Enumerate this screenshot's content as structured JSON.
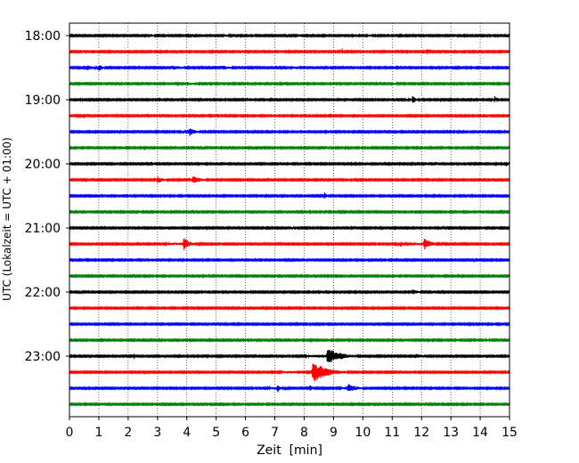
{
  "chart_data": {
    "type": "line",
    "xlabel": "Zeit  [min]",
    "ylabel": "UTC (Lokalzeit = UTC + 01:00)",
    "xlim": [
      0,
      15
    ],
    "xticks": [
      0,
      1,
      2,
      3,
      4,
      5,
      6,
      7,
      8,
      9,
      10,
      11,
      12,
      13,
      14,
      15
    ],
    "xtick_labels": [
      "0",
      "1",
      "2",
      "3",
      "4",
      "5",
      "6",
      "7",
      "8",
      "9",
      "10",
      "11",
      "12",
      "13",
      "14",
      "15"
    ],
    "x_grid": "dotted",
    "rows_start": "18:00",
    "row_interval_min": 15,
    "ytick_labels": [
      "18:00",
      "19:00",
      "20:00",
      "21:00",
      "22:00",
      "23:00"
    ],
    "colors": [
      "#000000",
      "#ff0000",
      "#0000ff",
      "#008000"
    ],
    "rows": [
      {
        "start": "18:00",
        "color": "#000000",
        "events": [
          {
            "x": 2.7,
            "amp": 0.25,
            "dur": 0.6
          },
          {
            "x": 5.3,
            "amp": 0.2,
            "dur": 0.5
          },
          {
            "x": 7.8,
            "amp": 0.2,
            "dur": 0.4
          },
          {
            "x": 10.2,
            "amp": 0.2,
            "dur": 0.5
          }
        ]
      },
      {
        "start": "18:15",
        "color": "#ff0000",
        "events": [
          {
            "x": 9.3,
            "amp": 0.45,
            "dur": 0.1
          },
          {
            "x": 12.2,
            "amp": 0.45,
            "dur": 0.1
          },
          {
            "x": 12.4,
            "amp": 0.3,
            "dur": 0.1
          }
        ]
      },
      {
        "start": "18:30",
        "color": "#0000ff",
        "events": [
          {
            "x": 0.6,
            "amp": 0.35,
            "dur": 0.6
          },
          {
            "x": 1.0,
            "amp": 0.45,
            "dur": 0.4
          },
          {
            "x": 3.5,
            "amp": 0.3,
            "dur": 1.0
          },
          {
            "x": 5.2,
            "amp": 0.3,
            "dur": 1.0
          },
          {
            "x": 7.5,
            "amp": 0.25,
            "dur": 1.0
          }
        ]
      },
      {
        "start": "18:45",
        "color": "#008000",
        "events": [
          {
            "x": 4.0,
            "amp": 0.25,
            "dur": 0.8
          },
          {
            "x": 11.0,
            "amp": 0.2,
            "dur": 0.6
          }
        ]
      },
      {
        "start": "19:00",
        "color": "#000000",
        "events": [
          {
            "x": 2.1,
            "amp": 0.3,
            "dur": 0.1
          },
          {
            "x": 11.7,
            "amp": 0.5,
            "dur": 0.3
          },
          {
            "x": 14.5,
            "amp": 0.45,
            "dur": 0.1
          }
        ]
      },
      {
        "start": "19:15",
        "color": "#ff0000",
        "events": [
          {
            "x": 0.5,
            "amp": 0.45,
            "dur": 0.15
          },
          {
            "x": 3.2,
            "amp": 0.3,
            "dur": 0.1
          }
        ]
      },
      {
        "start": "19:30",
        "color": "#0000ff",
        "events": [
          {
            "x": 2.3,
            "amp": 0.3,
            "dur": 0.2
          },
          {
            "x": 4.1,
            "amp": 0.55,
            "dur": 0.5
          },
          {
            "x": 7.8,
            "amp": 0.3,
            "dur": 0.1
          }
        ]
      },
      {
        "start": "19:45",
        "color": "#008000",
        "events": []
      },
      {
        "start": "20:00",
        "color": "#000000",
        "events": [
          {
            "x": 2.8,
            "amp": 0.3,
            "dur": 0.2
          },
          {
            "x": 12.5,
            "amp": 0.25,
            "dur": 0.3
          },
          {
            "x": 14.9,
            "amp": 0.4,
            "dur": 0.15
          }
        ]
      },
      {
        "start": "20:15",
        "color": "#ff0000",
        "events": [
          {
            "x": 3.0,
            "amp": 0.45,
            "dur": 0.6
          },
          {
            "x": 4.2,
            "amp": 0.5,
            "dur": 0.8
          },
          {
            "x": 9.5,
            "amp": 0.2,
            "dur": 0.4
          }
        ]
      },
      {
        "start": "20:30",
        "color": "#0000ff",
        "events": [
          {
            "x": 8.7,
            "amp": 0.5,
            "dur": 0.2
          }
        ]
      },
      {
        "start": "20:45",
        "color": "#008000",
        "events": []
      },
      {
        "start": "21:00",
        "color": "#000000",
        "events": [
          {
            "x": 7.5,
            "amp": 0.3,
            "dur": 0.3
          }
        ]
      },
      {
        "start": "21:15",
        "color": "#ff0000",
        "events": [
          {
            "x": 3.9,
            "amp": 0.8,
            "dur": 0.5
          },
          {
            "x": 5.1,
            "amp": 0.3,
            "dur": 0.2
          },
          {
            "x": 11.3,
            "amp": 0.45,
            "dur": 0.2
          },
          {
            "x": 12.1,
            "amp": 0.75,
            "dur": 0.6
          }
        ]
      },
      {
        "start": "21:30",
        "color": "#0000ff",
        "events": [
          {
            "x": 8.0,
            "amp": 0.2,
            "dur": 0.4
          }
        ]
      },
      {
        "start": "21:45",
        "color": "#008000",
        "events": []
      },
      {
        "start": "22:00",
        "color": "#000000",
        "events": [
          {
            "x": 6.1,
            "amp": 0.25,
            "dur": 0.1
          },
          {
            "x": 11.7,
            "amp": 0.35,
            "dur": 0.6
          }
        ]
      },
      {
        "start": "22:15",
        "color": "#ff0000",
        "events": []
      },
      {
        "start": "22:30",
        "color": "#0000ff",
        "events": []
      },
      {
        "start": "22:45",
        "color": "#008000",
        "events": [
          {
            "x": 12.4,
            "amp": 0.4,
            "dur": 0.15
          },
          {
            "x": 13.8,
            "amp": 0.3,
            "dur": 0.2
          },
          {
            "x": 14.2,
            "amp": 0.3,
            "dur": 0.2
          }
        ]
      },
      {
        "start": "23:00",
        "color": "#000000",
        "events": [
          {
            "x": 2.2,
            "amp": 0.35,
            "dur": 0.2
          },
          {
            "x": 6.4,
            "amp": 0.3,
            "dur": 0.1
          },
          {
            "x": 8.8,
            "amp": 1.0,
            "dur": 1.2
          },
          {
            "x": 11.8,
            "amp": 0.35,
            "dur": 0.6
          },
          {
            "x": 13.0,
            "amp": 0.35,
            "dur": 0.2
          }
        ]
      },
      {
        "start": "23:15",
        "color": "#ff0000",
        "events": [
          {
            "x": 8.3,
            "amp": 1.3,
            "dur": 1.2
          }
        ]
      },
      {
        "start": "23:30",
        "color": "#0000ff",
        "events": [
          {
            "x": 7.1,
            "amp": 0.6,
            "dur": 0.2
          },
          {
            "x": 8.2,
            "amp": 0.45,
            "dur": 0.2
          },
          {
            "x": 9.5,
            "amp": 0.55,
            "dur": 0.8
          }
        ]
      },
      {
        "start": "23:45",
        "color": "#008000",
        "events": []
      }
    ]
  }
}
